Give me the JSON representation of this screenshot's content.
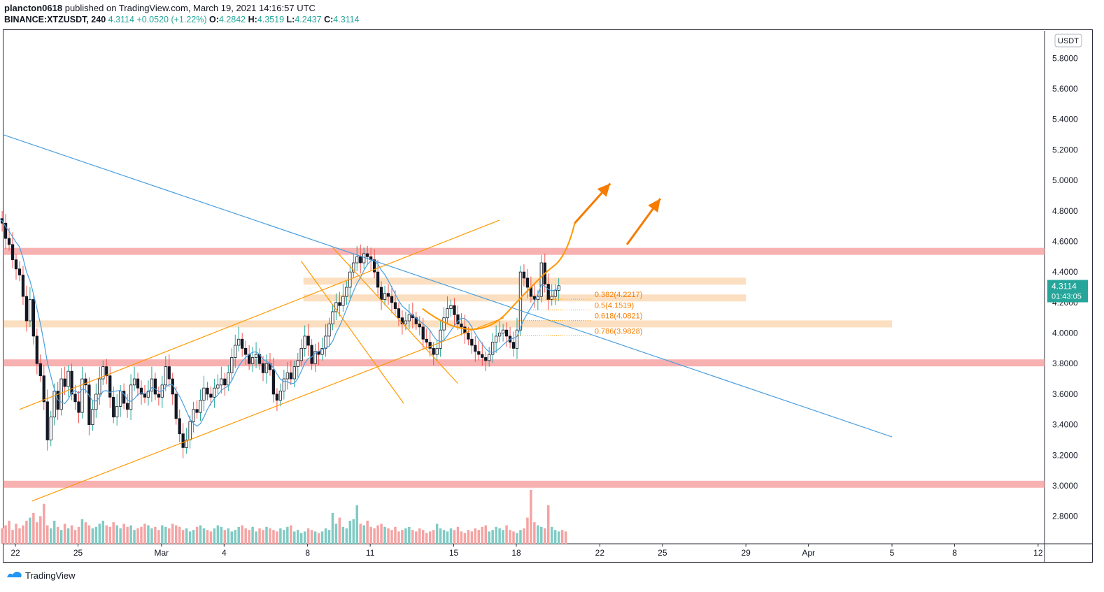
{
  "header": {
    "user": "plancton0618",
    "published_text": "published on TradingView.com, March 19, 2021 14:16:57 UTC",
    "symbol": "BINANCE:XTZUSDT, 240",
    "last": "4.3114",
    "change": "+0.0520 (+1.22%)",
    "o_label": "O:",
    "o_value": "4.2842",
    "h_label": "H:",
    "h_value": "4.3519",
    "l_label": "L:",
    "l_value": "4.2437",
    "c_label": "C:",
    "c_value": "4.3114"
  },
  "footer": {
    "brand": "TradingView"
  },
  "chart_data": {
    "type": "candlestick",
    "currency": "USDT",
    "y_ticks": [
      5.8,
      5.6,
      5.4,
      5.2,
      5.0,
      4.8,
      4.6,
      4.4,
      4.2,
      4.0,
      3.8,
      3.6,
      3.4,
      3.2,
      3.0,
      2.8
    ],
    "y_tick_labels": [
      "5.8000",
      "5.6000",
      "5.4000",
      "5.2000",
      "5.0000",
      "4.8000",
      "4.6000",
      "4.4000",
      "4.2000",
      "4.0000",
      "3.8000",
      "3.6000",
      "3.4000",
      "3.2000",
      "3.0000",
      "2.8000"
    ],
    "ylim": [
      2.62,
      5.98
    ],
    "x_tick_labels": [
      {
        "day": -6,
        "label": "22"
      },
      {
        "day": -3,
        "label": "25"
      },
      {
        "day": 1,
        "label": "Mar"
      },
      {
        "day": 4,
        "label": "4"
      },
      {
        "day": 8,
        "label": "8"
      },
      {
        "day": 11,
        "label": "11"
      },
      {
        "day": 15,
        "label": "15"
      },
      {
        "day": 18,
        "label": "18"
      },
      {
        "day": 22,
        "label": "22"
      },
      {
        "day": 25,
        "label": "25"
      },
      {
        "day": 29,
        "label": "29"
      },
      {
        "day": 32,
        "label": "Apr"
      },
      {
        "day": 36,
        "label": "5"
      },
      {
        "day": 39,
        "label": "8"
      },
      {
        "day": 43,
        "label": "12"
      }
    ],
    "last_price": {
      "value": 4.3114,
      "label": "4.3114",
      "countdown": "01:43:05",
      "color": "#26a69a"
    },
    "candles_close": [
      4.75,
      4.72,
      4.62,
      4.58,
      4.48,
      4.42,
      4.38,
      4.24,
      4.08,
      4.22,
      3.98,
      3.8,
      3.72,
      3.55,
      3.3,
      3.45,
      3.62,
      3.5,
      3.7,
      3.65,
      3.75,
      3.6,
      3.55,
      3.48,
      3.7,
      3.66,
      3.4,
      3.5,
      3.6,
      3.7,
      3.78,
      3.72,
      3.58,
      3.45,
      3.52,
      3.62,
      3.54,
      3.5,
      3.66,
      3.7,
      3.64,
      3.6,
      3.58,
      3.62,
      3.7,
      3.6,
      3.58,
      3.66,
      3.78,
      3.7,
      3.6,
      3.44,
      3.34,
      3.25,
      3.3,
      3.42,
      3.5,
      3.48,
      3.56,
      3.64,
      3.6,
      3.58,
      3.64,
      3.66,
      3.7,
      3.66,
      3.74,
      3.84,
      3.92,
      3.96,
      3.9,
      3.86,
      3.8,
      3.84,
      3.86,
      3.8,
      3.74,
      3.8,
      3.76,
      3.6,
      3.56,
      3.62,
      3.7,
      3.74,
      3.7,
      3.78,
      3.82,
      3.9,
      3.98,
      3.92,
      3.8,
      3.88,
      3.86,
      3.9,
      3.98,
      4.06,
      4.14,
      4.2,
      4.18,
      4.24,
      4.3,
      4.4,
      4.46,
      4.5,
      4.46,
      4.52,
      4.5,
      4.48,
      4.4,
      4.3,
      4.22,
      4.26,
      4.24,
      4.2,
      4.16,
      4.1,
      4.06,
      4.08,
      4.12,
      4.1,
      4.06,
      4.04,
      3.96,
      3.94,
      3.9,
      3.86,
      3.9,
      4.02,
      4.1,
      4.16,
      4.18,
      4.12,
      4.06,
      4.04,
      4.0,
      3.96,
      3.92,
      3.88,
      3.86,
      3.84,
      3.82,
      3.86,
      3.94,
      3.98,
      4.0,
      4.02,
      3.98,
      3.94,
      3.9,
      4.02,
      4.4,
      4.36,
      4.3,
      4.24,
      4.22,
      4.24,
      4.46,
      4.32,
      4.22,
      4.24,
      4.28,
      4.31
    ],
    "candles_first_day": -6.8,
    "candles_per_day": 6,
    "volume_scale_max": 1.0,
    "volume": [
      0.22,
      0.2,
      0.24,
      0.3,
      0.18,
      0.26,
      0.2,
      0.24,
      0.3,
      0.34,
      0.4,
      0.28,
      0.36,
      0.52,
      0.24,
      0.2,
      0.3,
      0.22,
      0.18,
      0.26,
      0.2,
      0.24,
      0.18,
      0.22,
      0.32,
      0.28,
      0.24,
      0.2,
      0.22,
      0.26,
      0.3,
      0.24,
      0.22,
      0.28,
      0.24,
      0.2,
      0.26,
      0.22,
      0.24,
      0.18,
      0.2,
      0.22,
      0.26,
      0.24,
      0.2,
      0.22,
      0.18,
      0.24,
      0.22,
      0.2,
      0.26,
      0.24,
      0.22,
      0.18,
      0.2,
      0.16,
      0.18,
      0.22,
      0.24,
      0.2,
      0.18,
      0.16,
      0.2,
      0.24,
      0.22,
      0.18,
      0.2,
      0.16,
      0.18,
      0.22,
      0.24,
      0.2,
      0.18,
      0.22,
      0.16,
      0.2,
      0.18,
      0.22,
      0.2,
      0.18,
      0.16,
      0.2,
      0.18,
      0.22,
      0.24,
      0.16,
      0.18,
      0.14,
      0.16,
      0.2,
      0.18,
      0.16,
      0.14,
      0.16,
      0.2,
      0.18,
      0.4,
      0.26,
      0.34,
      0.22,
      0.2,
      0.3,
      0.32,
      0.5,
      0.26,
      0.24,
      0.3,
      0.22,
      0.2,
      0.24,
      0.26,
      0.22,
      0.2,
      0.18,
      0.22,
      0.16,
      0.18,
      0.2,
      0.22,
      0.18,
      0.16,
      0.2,
      0.18,
      0.14,
      0.16,
      0.18,
      0.26,
      0.2,
      0.18,
      0.16,
      0.2,
      0.18,
      0.22,
      0.16,
      0.14,
      0.18,
      0.16,
      0.2,
      0.18,
      0.22,
      0.24,
      0.16,
      0.18,
      0.22,
      0.2,
      0.18,
      0.24,
      0.18,
      0.16,
      0.14,
      0.18,
      0.2,
      0.34,
      0.7,
      0.28,
      0.24,
      0.22,
      0.2,
      0.5,
      0.22,
      0.18,
      0.16,
      0.18,
      0.16
    ],
    "fibonacci": [
      {
        "label": "0.382(4.2217)",
        "value": 4.2217
      },
      {
        "label": "0.5(4.1519)",
        "value": 4.1519
      },
      {
        "label": "0.618(4.0821)",
        "value": 4.0821
      },
      {
        "label": "0.786(3.9828)",
        "value": 3.9828
      }
    ],
    "horizontal_zones": [
      {
        "type": "resistance",
        "value": 4.535,
        "color": "#f7a8a8"
      },
      {
        "type": "resistance",
        "value": 3.805,
        "color": "#f7a8a8"
      },
      {
        "type": "resistance",
        "value": 3.01,
        "color": "#f7a8a8"
      },
      {
        "type": "zone",
        "value": 4.34,
        "color": "#fad7b0"
      },
      {
        "type": "zone",
        "value": 4.23,
        "color": "#fad7b0"
      },
      {
        "type": "zone",
        "value": 4.06,
        "color": "#fad7b0"
      }
    ],
    "colors": {
      "up": "#26a69a",
      "down": "#ef5350",
      "candle_body": "#131722",
      "ma": "#4a9fe0",
      "trendline": "#4a9fe0",
      "channel": "#ff9800",
      "arrow": "#f57c00"
    }
  }
}
